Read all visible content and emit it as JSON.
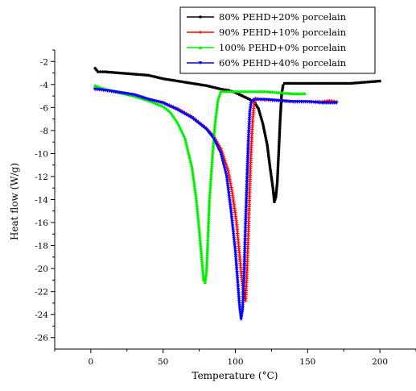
{
  "chart_data": {
    "type": "line",
    "xlabel": "Temperature (°C)",
    "ylabel": "Heat flow (W/g)",
    "xlim": [
      -25,
      225
    ],
    "ylim": [
      -27,
      -1
    ],
    "x_ticks": [
      0,
      50,
      100,
      150,
      200
    ],
    "y_ticks": [
      -2,
      -4,
      -6,
      -8,
      -10,
      -12,
      -14,
      -16,
      -18,
      -20,
      -22,
      -24,
      -26
    ],
    "grid": false,
    "legend_position": "top-right",
    "series": [
      {
        "name": "80% PEHD+20% porcelain",
        "color": "#000000",
        "marker": "circle",
        "points": [
          [
            3,
            -2.6
          ],
          [
            5,
            -2.9
          ],
          [
            10,
            -2.9
          ],
          [
            20,
            -3.0
          ],
          [
            30,
            -3.1
          ],
          [
            40,
            -3.2
          ],
          [
            50,
            -3.5
          ],
          [
            60,
            -3.7
          ],
          [
            70,
            -3.9
          ],
          [
            80,
            -4.1
          ],
          [
            90,
            -4.4
          ],
          [
            95,
            -4.5
          ],
          [
            100,
            -4.7
          ],
          [
            105,
            -5.0
          ],
          [
            110,
            -5.3
          ],
          [
            113,
            -5.5
          ],
          [
            116,
            -6.1
          ],
          [
            119,
            -7.4
          ],
          [
            122,
            -9.2
          ],
          [
            124,
            -11.2
          ],
          [
            126,
            -13.0
          ],
          [
            127,
            -14.2
          ],
          [
            128,
            -13.8
          ],
          [
            129,
            -12.5
          ],
          [
            130,
            -9.9
          ],
          [
            131,
            -7.1
          ],
          [
            132,
            -4.9
          ],
          [
            133,
            -4.1
          ],
          [
            134,
            -3.9
          ],
          [
            140,
            -3.9
          ],
          [
            150,
            -3.9
          ],
          [
            160,
            -3.9
          ],
          [
            170,
            -3.9
          ],
          [
            180,
            -3.9
          ],
          [
            190,
            -3.8
          ],
          [
            200,
            -3.7
          ]
        ]
      },
      {
        "name": "90% PEHD+10% porcelain",
        "color": "#ff0000",
        "marker": "plus",
        "points": [
          [
            3,
            -4.4
          ],
          [
            10,
            -4.5
          ],
          [
            20,
            -4.7
          ],
          [
            30,
            -4.9
          ],
          [
            40,
            -5.3
          ],
          [
            50,
            -5.6
          ],
          [
            60,
            -6.1
          ],
          [
            70,
            -6.8
          ],
          [
            80,
            -7.8
          ],
          [
            85,
            -8.5
          ],
          [
            90,
            -9.6
          ],
          [
            95,
            -11.5
          ],
          [
            98,
            -13.5
          ],
          [
            101,
            -16.2
          ],
          [
            103,
            -19.0
          ],
          [
            105,
            -21.5
          ],
          [
            106,
            -22.5
          ],
          [
            107,
            -22.8
          ],
          [
            108,
            -20.5
          ],
          [
            109,
            -16.8
          ],
          [
            110,
            -12.8
          ],
          [
            111,
            -9.5
          ],
          [
            112,
            -7.0
          ],
          [
            113,
            -5.7
          ],
          [
            114,
            -5.2
          ],
          [
            117,
            -5.3
          ],
          [
            130,
            -5.4
          ],
          [
            140,
            -5.5
          ],
          [
            150,
            -5.5
          ],
          [
            160,
            -5.5
          ],
          [
            165,
            -5.4
          ],
          [
            170,
            -5.5
          ]
        ]
      },
      {
        "name": "100% PEHD+0% porcelain",
        "color": "#00ee00",
        "marker": "triangle",
        "points": [
          [
            3,
            -4.1
          ],
          [
            10,
            -4.4
          ],
          [
            20,
            -4.7
          ],
          [
            30,
            -5.0
          ],
          [
            40,
            -5.4
          ],
          [
            50,
            -5.9
          ],
          [
            55,
            -6.4
          ],
          [
            60,
            -7.3
          ],
          [
            65,
            -8.6
          ],
          [
            70,
            -11.2
          ],
          [
            73,
            -14.0
          ],
          [
            75,
            -16.6
          ],
          [
            77,
            -19.5
          ],
          [
            78,
            -21.0
          ],
          [
            79,
            -21.2
          ],
          [
            80,
            -20.3
          ],
          [
            81,
            -17.5
          ],
          [
            82,
            -14.2
          ],
          [
            84,
            -10.5
          ],
          [
            86,
            -7.3
          ],
          [
            88,
            -5.3
          ],
          [
            90,
            -4.6
          ],
          [
            95,
            -4.6
          ],
          [
            100,
            -4.6
          ],
          [
            110,
            -4.6
          ],
          [
            120,
            -4.6
          ],
          [
            130,
            -4.7
          ],
          [
            140,
            -4.8
          ],
          [
            148,
            -4.8
          ]
        ]
      },
      {
        "name": "60% PEHD+40% porcelain",
        "color": "#0000ff",
        "marker": "triangle-down",
        "points": [
          [
            3,
            -4.4
          ],
          [
            10,
            -4.5
          ],
          [
            20,
            -4.7
          ],
          [
            30,
            -4.9
          ],
          [
            40,
            -5.3
          ],
          [
            50,
            -5.6
          ],
          [
            60,
            -6.2
          ],
          [
            70,
            -6.9
          ],
          [
            80,
            -7.9
          ],
          [
            85,
            -8.7
          ],
          [
            90,
            -10.0
          ],
          [
            94,
            -12.0
          ],
          [
            97,
            -15.0
          ],
          [
            100,
            -18.5
          ],
          [
            102,
            -21.8
          ],
          [
            103,
            -23.4
          ],
          [
            104,
            -24.4
          ],
          [
            105,
            -23.6
          ],
          [
            106,
            -20.5
          ],
          [
            107,
            -16.2
          ],
          [
            108,
            -12.4
          ],
          [
            109,
            -8.8
          ],
          [
            110,
            -6.4
          ],
          [
            111,
            -5.5
          ],
          [
            113,
            -5.3
          ],
          [
            120,
            -5.3
          ],
          [
            130,
            -5.4
          ],
          [
            140,
            -5.5
          ],
          [
            150,
            -5.5
          ],
          [
            160,
            -5.6
          ],
          [
            170,
            -5.6
          ]
        ]
      }
    ]
  }
}
